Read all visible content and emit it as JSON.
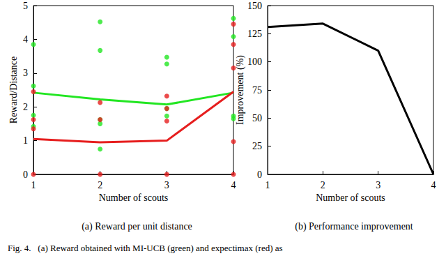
{
  "caption": "Fig. 4.   (a) Reward obtained with MI-UCB (green) and expectimax (red) as",
  "chart_data": [
    {
      "type": "scatter",
      "title": "(a) Reward per unit distance",
      "x_label": "Number of scouts",
      "y_label": "Reward/Distance",
      "xlim": [
        1,
        4
      ],
      "xticks": [
        1,
        2,
        3,
        4
      ],
      "ylim": [
        0,
        5
      ],
      "yticks": [
        0,
        1,
        2,
        3,
        4,
        5
      ],
      "grid": false,
      "series": [
        {
          "type": "scatter",
          "color": "#22e622",
          "marker": "circle",
          "x": [
            1,
            1,
            1,
            1,
            2,
            2,
            2,
            2,
            2,
            3,
            3,
            3,
            3,
            4,
            4,
            4,
            4
          ],
          "values": [
            3.85,
            2.62,
            1.75,
            1.42,
            4.52,
            3.67,
            1.62,
            1.5,
            0.75,
            3.47,
            3.27,
            1.95,
            1.73,
            4.62,
            4.08,
            1.73,
            1.65
          ]
        },
        {
          "type": "scatter",
          "color": "#e61e1e",
          "marker": "circle",
          "x": [
            1,
            1,
            1,
            1,
            2,
            2,
            2,
            3,
            3,
            3,
            3,
            4,
            4,
            4,
            4,
            4
          ],
          "values": [
            2.45,
            1.62,
            1.35,
            0,
            2.13,
            1.62,
            0,
            2.32,
            1.95,
            1.58,
            0,
            4.45,
            3.85,
            3.15,
            0.97,
            0
          ]
        },
        {
          "type": "line",
          "color": "#22e622",
          "line_style": "solid",
          "x": [
            1,
            2,
            3,
            4
          ],
          "values": [
            2.42,
            2.22,
            2.07,
            2.42
          ]
        },
        {
          "type": "line",
          "color": "#e61e1e",
          "line_style": "solid",
          "x": [
            1,
            2,
            3,
            4
          ],
          "values": [
            1.05,
            0.95,
            1.0,
            2.45
          ]
        }
      ]
    },
    {
      "type": "line",
      "title": "(b) Performance improvement",
      "x_label": "Number of scouts",
      "y_label": "Improvement (%)",
      "xlim": [
        1,
        4
      ],
      "xticks": [
        1,
        2,
        3,
        4
      ],
      "ylim": [
        0,
        150
      ],
      "yticks": [
        0,
        25,
        50,
        75,
        100,
        125,
        150
      ],
      "grid": false,
      "series": [
        {
          "type": "line",
          "color": "#000000",
          "line_style": "solid",
          "x": [
            1,
            2,
            3,
            4
          ],
          "values": [
            131,
            134,
            110,
            0
          ]
        }
      ]
    }
  ]
}
